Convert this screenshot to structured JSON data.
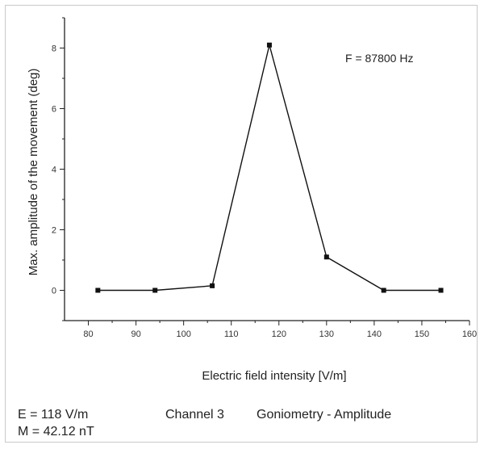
{
  "chart_data": {
    "type": "line",
    "xlabel": "Electric field intensity [V/m]",
    "ylabel": "Max. amplitude of the movement (deg)",
    "xlim": [
      75,
      160
    ],
    "ylim": [
      -1,
      9
    ],
    "x_ticks": [
      80,
      90,
      100,
      110,
      120,
      130,
      140,
      150,
      160
    ],
    "y_ticks": [
      0,
      2,
      4,
      6,
      8
    ],
    "annotation": "F = 87800 Hz",
    "grid": false,
    "x": [
      82,
      94,
      106,
      118,
      130,
      142,
      154
    ],
    "y": [
      0.0,
      0.0,
      0.15,
      8.1,
      1.1,
      0.0,
      0.0
    ],
    "line_color": "#111111"
  },
  "footer": {
    "e_value": "E = 118 V/m",
    "channel": "Channel 3",
    "method": "Goniometry - Amplitude",
    "m_value": "M = 42.12 nT"
  }
}
